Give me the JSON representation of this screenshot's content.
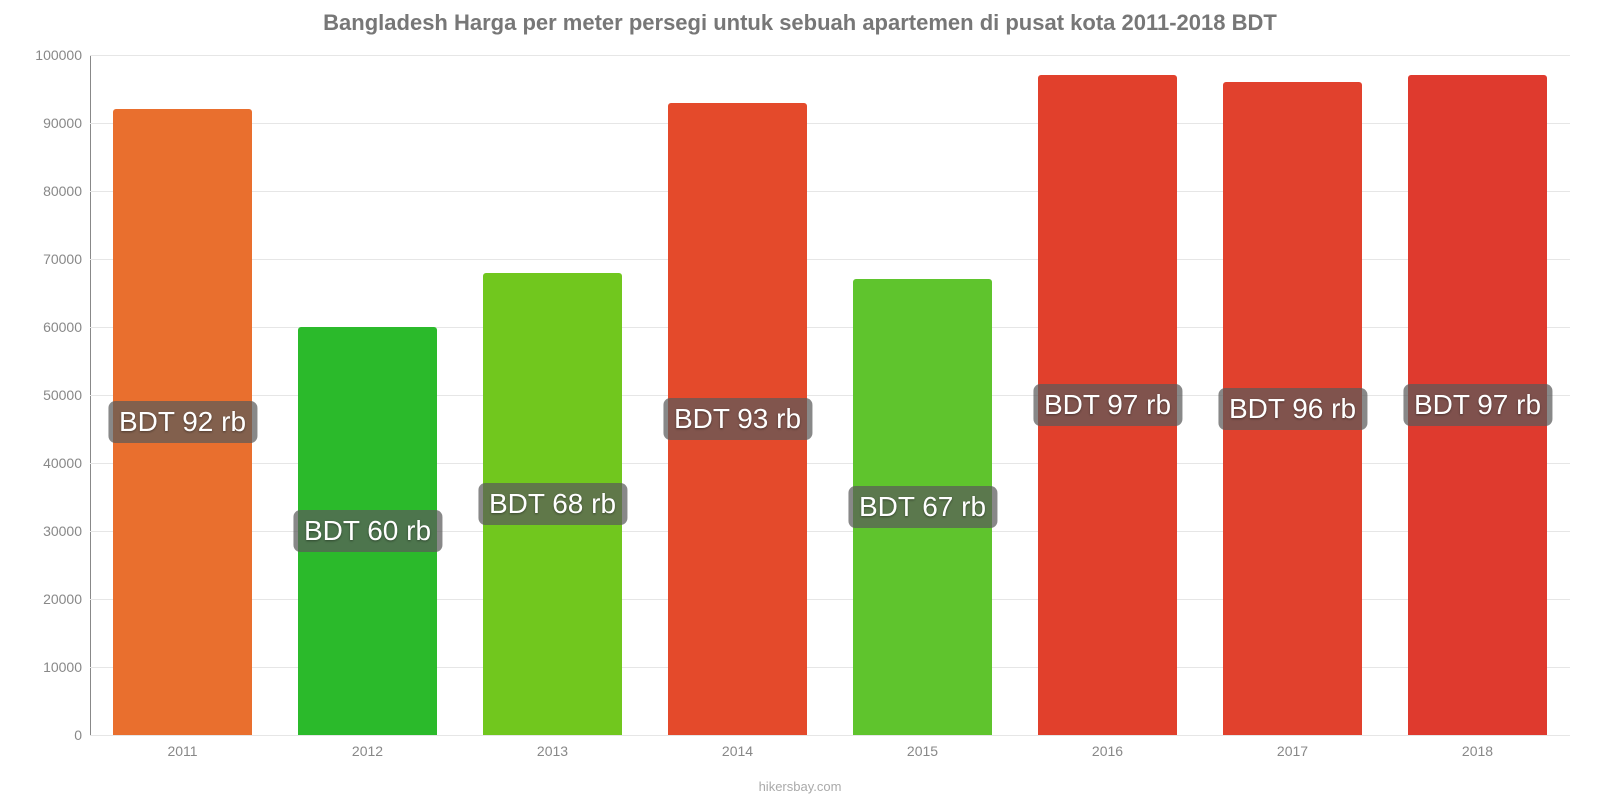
{
  "chart": {
    "type": "bar",
    "title": "Bangladesh Harga per meter persegi untuk sebuah apartemen di pusat kota 2011-2018 BDT",
    "title_color": "#777777",
    "title_fontsize": 22,
    "background_color": "#ffffff",
    "grid_color": "#e6e6e6",
    "axis_label_color": "#888888",
    "tick_fontsize": 14,
    "ylim": [
      0,
      100000
    ],
    "ytick_step": 10000,
    "yticks": [
      {
        "v": 0,
        "label": "0"
      },
      {
        "v": 10000,
        "label": "10000"
      },
      {
        "v": 20000,
        "label": "20000"
      },
      {
        "v": 30000,
        "label": "30000"
      },
      {
        "v": 40000,
        "label": "40000"
      },
      {
        "v": 50000,
        "label": "50000"
      },
      {
        "v": 60000,
        "label": "60000"
      },
      {
        "v": 70000,
        "label": "70000"
      },
      {
        "v": 80000,
        "label": "80000"
      },
      {
        "v": 90000,
        "label": "90000"
      },
      {
        "v": 100000,
        "label": "100000"
      }
    ],
    "bar_width_pct": 75,
    "bar_label_fontsize": 28,
    "bar_label_color": "#ffffff",
    "bar_label_bg": "rgba(90,90,90,0.72)",
    "data_label_y_ratio": 0.5,
    "categories": [
      "2011",
      "2012",
      "2013",
      "2014",
      "2015",
      "2016",
      "2017",
      "2018"
    ],
    "bars": [
      {
        "x": "2011",
        "value": 92000,
        "label": "BDT 92 rb",
        "color": "#e96f2e"
      },
      {
        "x": "2012",
        "value": 60000,
        "label": "BDT 60 rb",
        "color": "#2bba2b"
      },
      {
        "x": "2013",
        "value": 68000,
        "label": "BDT 68 rb",
        "color": "#71c71e"
      },
      {
        "x": "2014",
        "value": 93000,
        "label": "BDT 93 rb",
        "color": "#e44a2b"
      },
      {
        "x": "2015",
        "value": 67000,
        "label": "BDT 67 rb",
        "color": "#5fc42d"
      },
      {
        "x": "2016",
        "value": 97000,
        "label": "BDT 97 rb",
        "color": "#e1402c"
      },
      {
        "x": "2017",
        "value": 96000,
        "label": "BDT 96 rb",
        "color": "#e1412d"
      },
      {
        "x": "2018",
        "value": 97000,
        "label": "BDT 97 rb",
        "color": "#df3a2e"
      }
    ],
    "credit": "hikersbay.com",
    "credit_color": "#aaaaaa",
    "credit_fontsize": 13
  }
}
